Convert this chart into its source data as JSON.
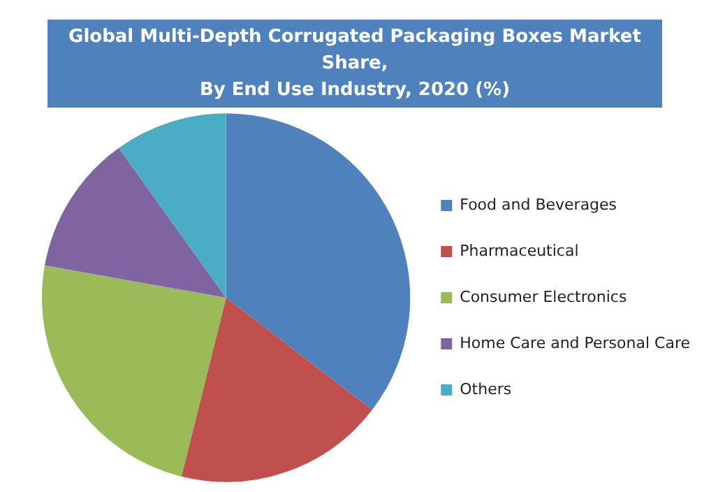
{
  "chart_data": {
    "type": "pie",
    "title": "Global Multi-Depth Corrugated Packaging Boxes Market Share,\nBy End Use Industry, 2020 (%)",
    "categories": [
      "Food and Beverages",
      "Pharmaceutical",
      "Consumer Electronics",
      "Home Care and Personal Care",
      "Others"
    ],
    "values": [
      35.4,
      18.5,
      23.9,
      12.3,
      9.9
    ],
    "colors": [
      "#4f81bd",
      "#c0504d",
      "#9bbb59",
      "#8064a2",
      "#4bacc6"
    ],
    "legend": "right"
  }
}
